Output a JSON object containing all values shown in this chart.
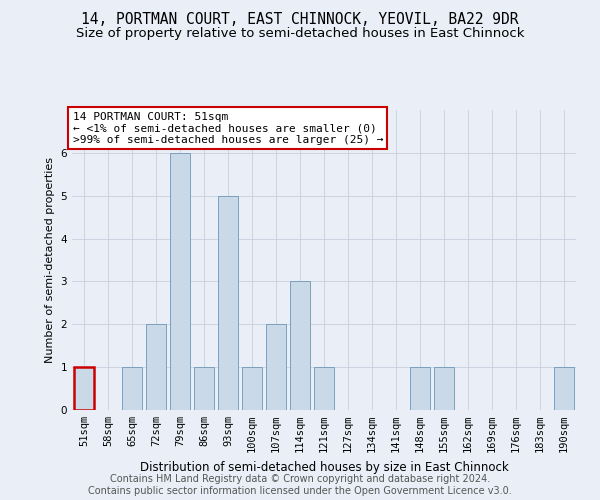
{
  "title1": "14, PORTMAN COURT, EAST CHINNOCK, YEOVIL, BA22 9DR",
  "title2": "Size of property relative to semi-detached houses in East Chinnock",
  "xlabel": "Distribution of semi-detached houses by size in East Chinnock",
  "ylabel": "Number of semi-detached properties",
  "categories": [
    "51sqm",
    "58sqm",
    "65sqm",
    "72sqm",
    "79sqm",
    "86sqm",
    "93sqm",
    "100sqm",
    "107sqm",
    "114sqm",
    "121sqm",
    "127sqm",
    "134sqm",
    "141sqm",
    "148sqm",
    "155sqm",
    "162sqm",
    "169sqm",
    "176sqm",
    "183sqm",
    "190sqm"
  ],
  "values": [
    1,
    0,
    1,
    2,
    6,
    1,
    5,
    1,
    2,
    3,
    1,
    0,
    0,
    0,
    1,
    1,
    0,
    0,
    0,
    0,
    1
  ],
  "bar_color": "#c9d9e8",
  "bar_edge_color": "#7aa0be",
  "highlight_index": 0,
  "highlight_edge_color": "#cc0000",
  "annotation_line1": "14 PORTMAN COURT: 51sqm",
  "annotation_line2": "← <1% of semi-detached houses are smaller (0)",
  "annotation_line3": ">99% of semi-detached houses are larger (25) →",
  "annotation_box_color": "#ffffff",
  "annotation_box_edge": "#cc0000",
  "ylim": [
    0,
    7
  ],
  "yticks": [
    0,
    1,
    2,
    3,
    4,
    5,
    6
  ],
  "background_color": "#eaeff7",
  "grid_color": "#c0c8d8",
  "footer1": "Contains HM Land Registry data © Crown copyright and database right 2024.",
  "footer2": "Contains public sector information licensed under the Open Government Licence v3.0.",
  "title1_fontsize": 10.5,
  "title2_fontsize": 9.5,
  "xlabel_fontsize": 8.5,
  "ylabel_fontsize": 8,
  "tick_fontsize": 7.5,
  "annotation_fontsize": 8,
  "footer_fontsize": 7
}
